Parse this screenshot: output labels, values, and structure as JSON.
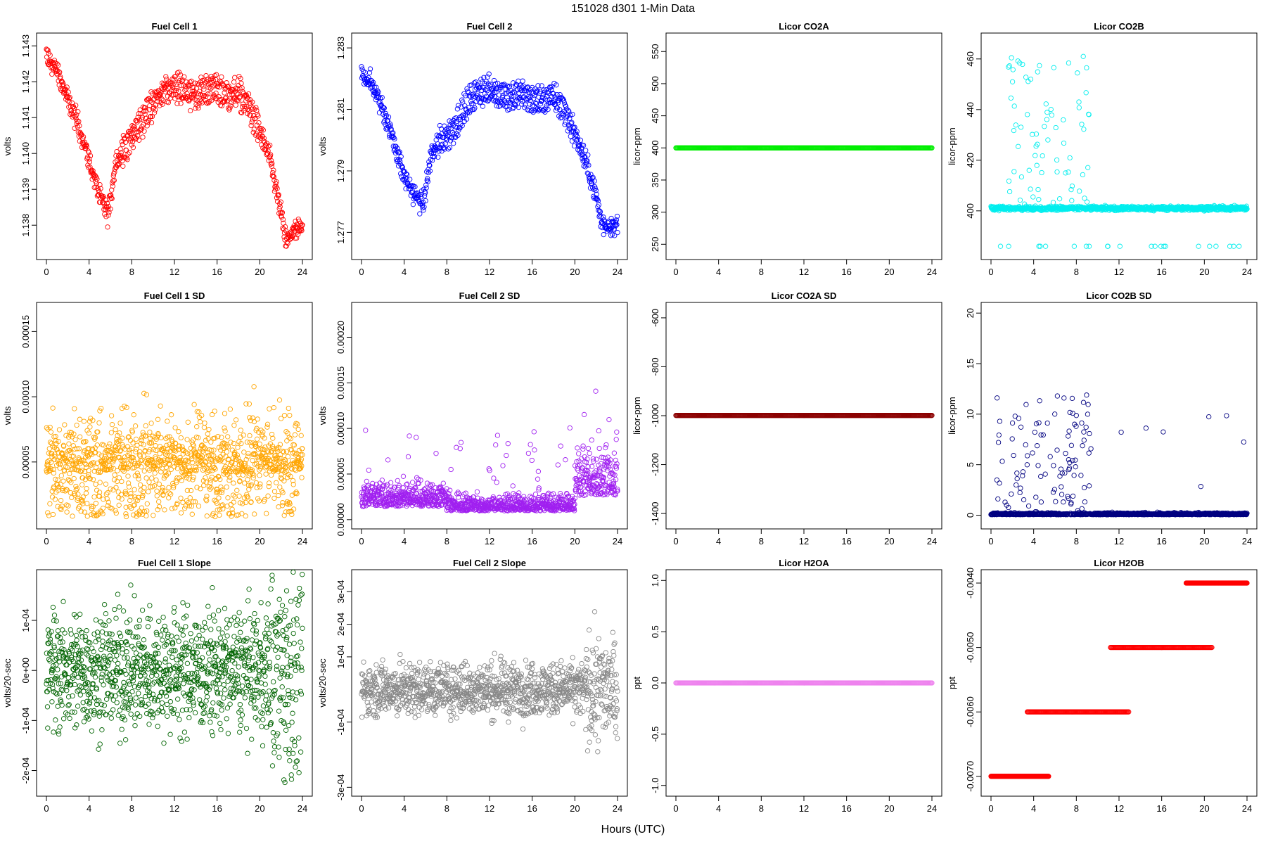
{
  "figure": {
    "title": "151028   d301   1-Min Data",
    "x_label": "Hours (UTC)"
  },
  "chart_data": [
    {
      "id": "fc1",
      "title": "Fuel Cell 1",
      "type": "scatter",
      "color": "#ff0000",
      "xlabel": "Hours (UTC)",
      "ylabel": "volts",
      "xlim": [
        0,
        24
      ],
      "ylim": [
        1.1372,
        1.1432
      ],
      "xticks": [
        "0",
        "4",
        "8",
        "12",
        "16",
        "20",
        "24"
      ],
      "yticks": [
        {
          "v": 1.138,
          "label": "1.138"
        },
        {
          "v": 1.139,
          "label": "1.139"
        },
        {
          "v": 1.14,
          "label": "1.140"
        },
        {
          "v": 1.141,
          "label": "1.141"
        },
        {
          "v": 1.142,
          "label": "1.142"
        },
        {
          "v": 1.143,
          "label": "1.143"
        }
      ],
      "series": [
        {
          "name": "Fuel Cell 1",
          "gen": "track",
          "x": [
            0,
            0.5,
            1,
            2,
            3,
            4,
            5,
            5.8,
            6.5,
            7.5,
            8.5,
            10,
            11,
            12,
            13,
            14,
            15,
            16,
            17,
            18,
            19,
            20,
            21,
            22,
            22.5,
            23,
            24
          ],
          "values": [
            1.1427,
            1.1425,
            1.1423,
            1.1415,
            1.1408,
            1.1398,
            1.1388,
            1.1383,
            1.1398,
            1.1402,
            1.1407,
            1.1414,
            1.1418,
            1.1418,
            1.1418,
            1.1416,
            1.1418,
            1.1418,
            1.1416,
            1.1417,
            1.1413,
            1.1406,
            1.1398,
            1.1383,
            1.1375,
            1.1378,
            1.1379
          ],
          "spread": 0.00035,
          "n": 700
        }
      ]
    },
    {
      "id": "fc2",
      "title": "Fuel Cell 2",
      "type": "scatter",
      "color": "#0000ff",
      "xlabel": "Hours (UTC)",
      "ylabel": "volts",
      "xlim": [
        0,
        24
      ],
      "ylim": [
        1.2763,
        1.2833
      ],
      "xticks": [
        "0",
        "4",
        "8",
        "12",
        "16",
        "20",
        "24"
      ],
      "yticks": [
        {
          "v": 1.277,
          "label": "1.277"
        },
        {
          "v": 1.279,
          "label": "1.279"
        },
        {
          "v": 1.281,
          "label": "1.281"
        },
        {
          "v": 1.283,
          "label": "1.283"
        }
      ],
      "series": [
        {
          "name": "Fuel Cell 2",
          "gen": "track",
          "x": [
            0,
            0.5,
            1,
            2,
            3,
            4,
            5,
            5.8,
            6.5,
            7.5,
            8.5,
            10,
            11,
            12,
            13,
            14,
            15,
            16,
            17,
            18,
            19,
            20,
            21,
            22,
            22.5,
            23,
            24
          ],
          "values": [
            1.2822,
            1.282,
            1.2818,
            1.281,
            1.28,
            1.2788,
            1.2782,
            1.2779,
            1.2795,
            1.28,
            1.2803,
            1.2812,
            1.2816,
            1.2816,
            1.2815,
            1.2814,
            1.2815,
            1.2813,
            1.2813,
            1.2814,
            1.281,
            1.2802,
            1.2793,
            1.2782,
            1.2773,
            1.2772,
            1.2773
          ],
          "spread": 0.0004,
          "n": 700
        }
      ]
    },
    {
      "id": "co2a",
      "title": "Licor CO2A",
      "type": "scatter",
      "color": "#00ee00",
      "xlabel": "Hours (UTC)",
      "ylabel": "licor-ppm",
      "xlim": [
        0,
        24
      ],
      "ylim": [
        235,
        570
      ],
      "xticks": [
        "0",
        "4",
        "8",
        "12",
        "16",
        "20",
        "24"
      ],
      "yticks": [
        {
          "v": 250,
          "label": "250"
        },
        {
          "v": 300,
          "label": "300"
        },
        {
          "v": 350,
          "label": "350"
        },
        {
          "v": 400,
          "label": "400"
        },
        {
          "v": 450,
          "label": "450"
        },
        {
          "v": 500,
          "label": "500"
        },
        {
          "v": 550,
          "label": "550"
        }
      ],
      "series": [
        {
          "name": "Licor CO2A",
          "gen": "const",
          "value": 400,
          "n": 360
        }
      ]
    },
    {
      "id": "co2b",
      "title": "Licor CO2B",
      "type": "scatter",
      "color": "#00eeee",
      "xlabel": "Hours (UTC)",
      "ylabel": "licor-ppm",
      "xlim": [
        0,
        24
      ],
      "ylim": [
        383,
        468
      ],
      "xticks": [
        "0",
        "4",
        "8",
        "12",
        "16",
        "20",
        "24"
      ],
      "yticks": [
        {
          "v": 400,
          "label": "400"
        },
        {
          "v": 420,
          "label": "420"
        },
        {
          "v": 440,
          "label": "440"
        },
        {
          "v": 460,
          "label": "460"
        }
      ],
      "series": [
        {
          "name": "Licor CO2B",
          "gen": "co2b",
          "value": 401,
          "n": 1000
        }
      ]
    },
    {
      "id": "fc1sd",
      "title": "Fuel Cell 1 SD",
      "type": "scatter",
      "color": "#ffa500",
      "xlabel": "Hours (UTC)",
      "ylabel": "volts",
      "xlim": [
        0,
        24
      ],
      "ylim": [
        3e-06,
        0.000168
      ],
      "xticks": [
        "0",
        "4",
        "8",
        "12",
        "16",
        "20",
        "24"
      ],
      "yticks": [
        {
          "v": 5e-05,
          "label": "0.00005"
        },
        {
          "v": 0.0001,
          "label": "0.00010"
        },
        {
          "v": 0.00015,
          "label": "0.00015"
        }
      ],
      "series": [
        {
          "name": "Fuel Cell 1 SD",
          "gen": "noise",
          "base": 4.2e-05,
          "spread": 5e-05,
          "min": 8e-06,
          "n": 1200
        }
      ]
    },
    {
      "id": "fc2sd",
      "title": "Fuel Cell 2 SD",
      "type": "scatter",
      "color": "#a020f0",
      "xlabel": "Hours (UTC)",
      "ylabel": "volts",
      "xlim": [
        0,
        24
      ],
      "ylim": [
        -4e-06,
        0.000232
      ],
      "xticks": [
        "0",
        "4",
        "8",
        "12",
        "16",
        "20",
        "24"
      ],
      "yticks": [
        {
          "v": 0.0,
          "label": "0.00000"
        },
        {
          "v": 5e-05,
          "label": "0.00005"
        },
        {
          "v": 0.0001,
          "label": "0.00010"
        },
        {
          "v": 0.00015,
          "label": "0.00015"
        },
        {
          "v": 0.0002,
          "label": "0.00020"
        }
      ],
      "series": [
        {
          "name": "Fuel Cell 2 SD",
          "gen": "sd2",
          "base": 1.2e-05,
          "spread": 3e-05,
          "min": 1e-06,
          "n": 1200
        }
      ]
    },
    {
      "id": "co2asd",
      "title": "Licor CO2A SD",
      "type": "scatter",
      "color": "#8b0000",
      "xlabel": "Hours (UTC)",
      "ylabel": "licor-ppm",
      "xlim": [
        0,
        24
      ],
      "ylim": [
        -1440,
        -560
      ],
      "xticks": [
        "0",
        "4",
        "8",
        "12",
        "16",
        "20",
        "24"
      ],
      "yticks": [
        {
          "v": -1400,
          "label": "-1400"
        },
        {
          "v": -1200,
          "label": "-1200"
        },
        {
          "v": -1000,
          "label": "-1000"
        },
        {
          "v": -800,
          "label": "-800"
        },
        {
          "v": -600,
          "label": "-600"
        }
      ],
      "series": [
        {
          "name": "Licor CO2A SD",
          "gen": "const",
          "value": -999,
          "n": 360
        }
      ]
    },
    {
      "id": "co2bsd",
      "title": "Licor CO2B SD",
      "type": "scatter",
      "color": "#000080",
      "xlabel": "Hours (UTC)",
      "ylabel": "licor-ppm",
      "xlim": [
        0,
        24
      ],
      "ylim": [
        -0.8,
        20.5
      ],
      "xticks": [
        "0",
        "4",
        "8",
        "12",
        "16",
        "20",
        "24"
      ],
      "yticks": [
        {
          "v": 0,
          "label": "0"
        },
        {
          "v": 5,
          "label": "5"
        },
        {
          "v": 10,
          "label": "10"
        },
        {
          "v": 15,
          "label": "15"
        },
        {
          "v": 20,
          "label": "20"
        }
      ],
      "series": [
        {
          "name": "Licor CO2B SD",
          "gen": "co2bsd",
          "value": 0.05,
          "n": 1000
        }
      ]
    },
    {
      "id": "fc1slope",
      "title": "Fuel Cell 1 Slope",
      "type": "scatter",
      "color": "#006400",
      "xlabel": "Hours (UTC)",
      "ylabel": "volts/20-sec",
      "xlim": [
        0,
        24
      ],
      "ylim": [
        -0.00024,
        0.00019
      ],
      "xticks": [
        "0",
        "4",
        "8",
        "12",
        "16",
        "20",
        "24"
      ],
      "yticks": [
        {
          "v": -0.0002,
          "label": "-2e-04"
        },
        {
          "v": -0.0001,
          "label": "-1e-04"
        },
        {
          "v": 0,
          "label": "0e+00"
        },
        {
          "v": 0.0001,
          "label": "1e-04"
        }
      ],
      "series": [
        {
          "name": "Fuel Cell 1 Slope",
          "gen": "slope",
          "spread": 6e-05,
          "n": 1200
        }
      ]
    },
    {
      "id": "fc2slope",
      "title": "Fuel Cell 2 Slope",
      "type": "scatter",
      "color": "#888888",
      "xlabel": "Hours (UTC)",
      "ylabel": "volts/20-sec",
      "xlim": [
        0,
        24
      ],
      "ylim": [
        -0.00031,
        0.00035
      ],
      "xticks": [
        "0",
        "4",
        "8",
        "12",
        "16",
        "20",
        "24"
      ],
      "yticks": [
        {
          "v": -0.0003,
          "label": "-3e-04"
        },
        {
          "v": -0.0001,
          "label": "-1e-04"
        },
        {
          "v": 0.0001,
          "label": "1e-04"
        },
        {
          "v": 0.0002,
          "label": "2e-04"
        },
        {
          "v": 0.0003,
          "label": "3e-04"
        }
      ],
      "series": [
        {
          "name": "Fuel Cell 2 Slope",
          "gen": "slope",
          "spread": 4e-05,
          "n": 1200
        }
      ]
    },
    {
      "id": "h2oa",
      "title": "Licor H2OA",
      "type": "scatter",
      "color": "#ee82ee",
      "xlabel": "Hours (UTC)",
      "ylabel": "ppt",
      "xlim": [
        0,
        24
      ],
      "ylim": [
        -1.05,
        1.05
      ],
      "xticks": [
        "0",
        "4",
        "8",
        "12",
        "16",
        "20",
        "24"
      ],
      "yticks": [
        {
          "v": -1.0,
          "label": "-1.0"
        },
        {
          "v": -0.5,
          "label": "-0.5"
        },
        {
          "v": 0.0,
          "label": "0.0"
        },
        {
          "v": 0.5,
          "label": "0.5"
        },
        {
          "v": 1.0,
          "label": "1.0"
        }
      ],
      "series": [
        {
          "name": "Licor H2OA",
          "gen": "const",
          "value": 0,
          "n": 360
        }
      ]
    },
    {
      "id": "h2ob",
      "title": "Licor H2OB",
      "type": "scatter",
      "color": "#ff0000",
      "xlabel": "Hours (UTC)",
      "ylabel": "ppt",
      "xlim": [
        0,
        24
      ],
      "ylim": [
        -0.00722,
        -0.00388
      ],
      "xticks": [
        "0",
        "4",
        "8",
        "12",
        "16",
        "20",
        "24"
      ],
      "yticks": [
        {
          "v": -0.007,
          "label": "-0.0070"
        },
        {
          "v": -0.006,
          "label": "-0.0060"
        },
        {
          "v": -0.005,
          "label": "-0.0050"
        },
        {
          "v": -0.004,
          "label": "-0.0040"
        }
      ],
      "series": [
        {
          "name": "Licor H2OB",
          "gen": "steps",
          "steps": [
            {
              "x0": 0,
              "x1": 5.4,
              "value": -0.007
            },
            {
              "x0": 3.4,
              "x1": 12.9,
              "value": -0.006
            },
            {
              "x0": 11.2,
              "x1": 20.7,
              "value": -0.005
            },
            {
              "x0": 18.3,
              "x1": 24,
              "value": -0.004
            }
          ],
          "n": 140
        }
      ]
    }
  ]
}
